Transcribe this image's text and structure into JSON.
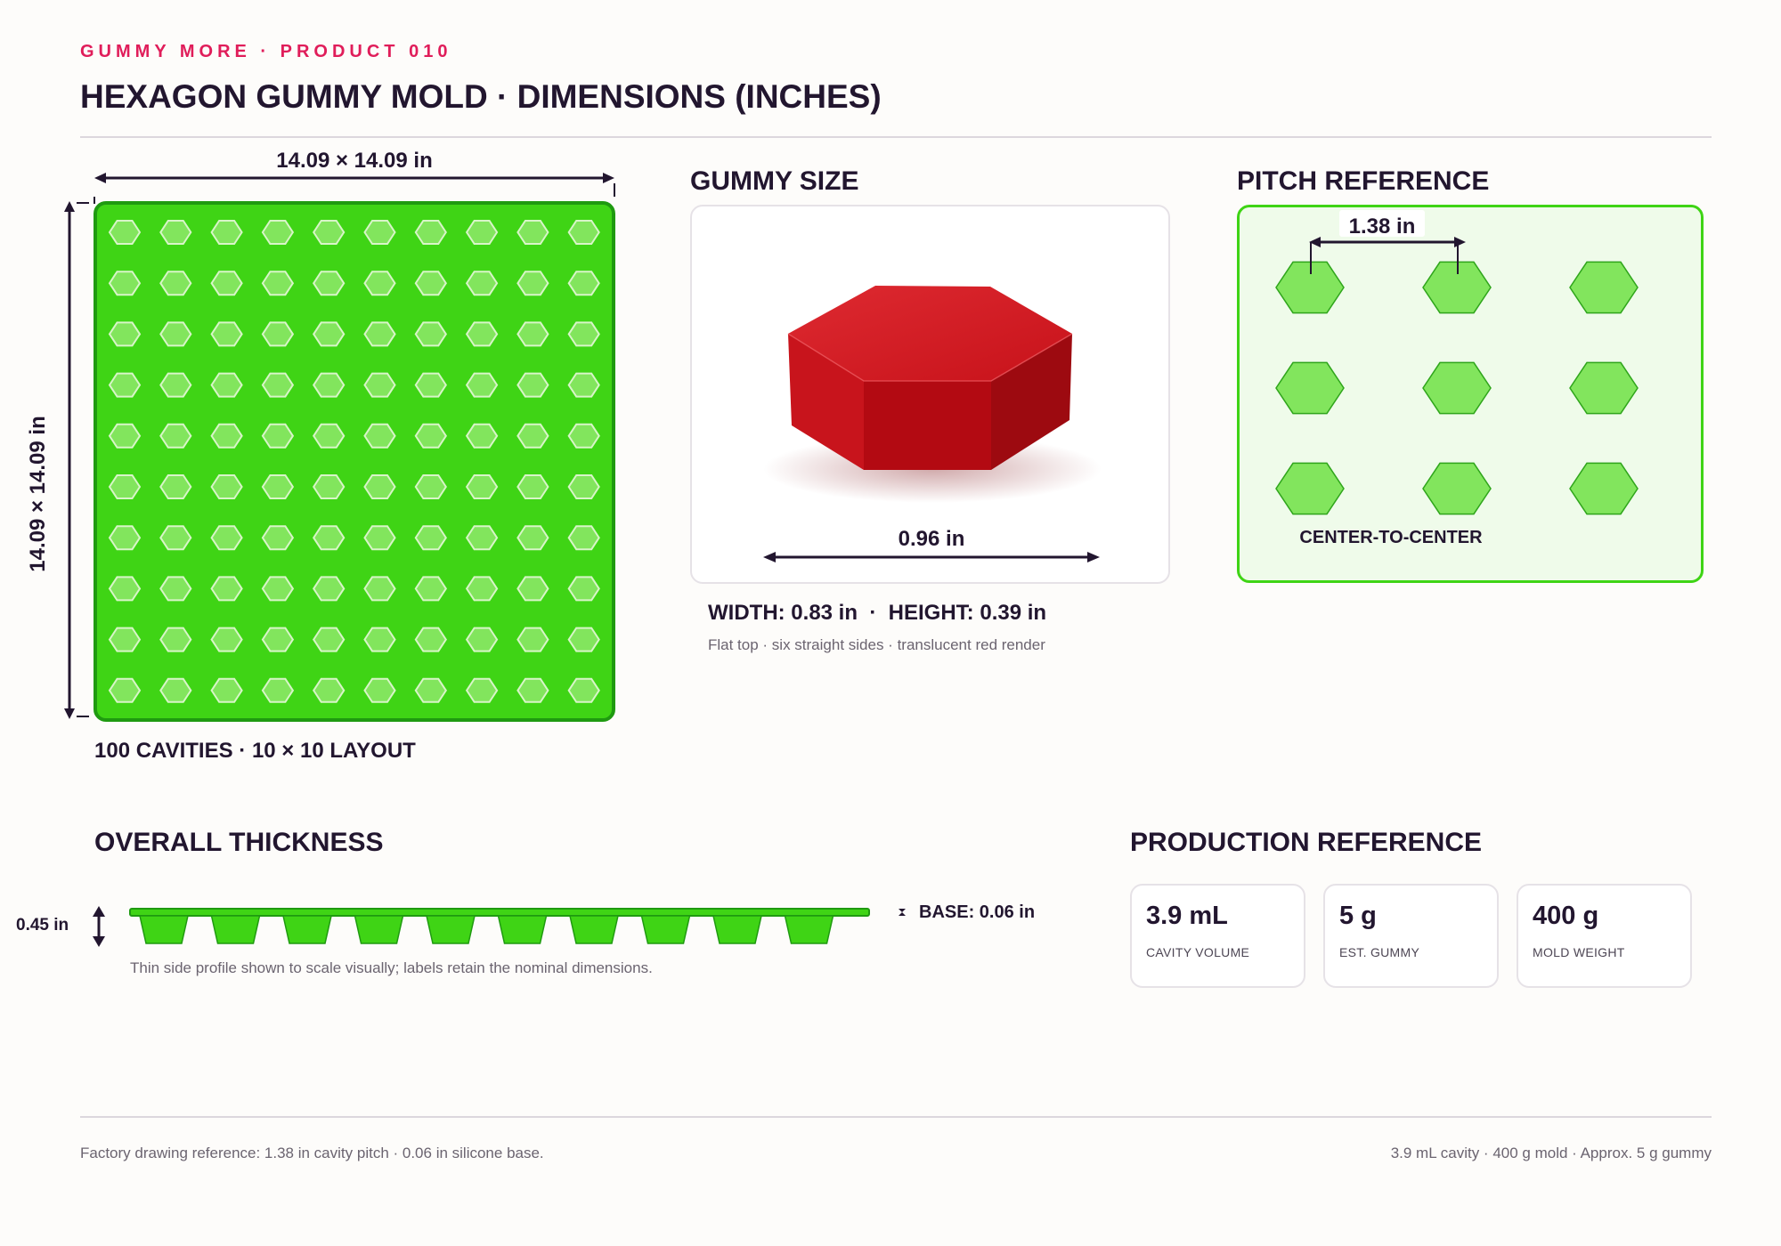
{
  "header": {
    "eyebrow": "GUMMY MORE · PRODUCT 010",
    "title": "HEXAGON GUMMY MOLD · DIMENSIONS (INCHES)"
  },
  "mold": {
    "width_label": "14.09 × 14.09 in",
    "height_label": "14.09 × 14.09 in",
    "rows": 10,
    "cols": 10,
    "caption": "100 CAVITIES · 10 × 10 LAYOUT",
    "colors": {
      "tray": "#3fd415",
      "tray_border": "#1f9a10",
      "cavity": "#82e55d",
      "cavity_stroke": "#d8f5c8"
    }
  },
  "gummy": {
    "section_title": "GUMMY SIZE",
    "diameter_label": "0.96 in",
    "dims": "WIDTH: 0.83 in  ·  HEIGHT: 0.39 in",
    "note": "Flat top · six straight sides · translucent red render",
    "colors": {
      "top": "#d41a22",
      "front": "#b30a12",
      "side_dark": "#9d0a10",
      "side_light": "#c8141c"
    }
  },
  "pitch": {
    "section_title": "PITCH REFERENCE",
    "pitch_label": "1.38 in",
    "caption": "CENTER-TO-CENTER",
    "rows": 3,
    "cols": 3,
    "colors": {
      "panel_bg": "#effbea",
      "panel_border": "#3fd415",
      "hex": "#82e55d",
      "hex_stroke": "#2fa51b"
    }
  },
  "thickness": {
    "section_title": "OVERALL THICKNESS",
    "total_label": "0.45 in",
    "base_label": "BASE: 0.06 in",
    "cavity_count": 10,
    "note": "Thin side profile shown to scale visually; labels retain the nominal dimensions."
  },
  "production": {
    "section_title": "PRODUCTION REFERENCE",
    "stats": [
      {
        "value": "3.9 mL",
        "label": "CAVITY VOLUME"
      },
      {
        "value": "5 g",
        "label": "EST. GUMMY"
      },
      {
        "value": "400 g",
        "label": "MOLD WEIGHT"
      }
    ]
  },
  "footer": {
    "left": "Factory drawing reference: 1.38 in cavity pitch · 0.06 in silicone base.",
    "right": "3.9 mL cavity · 400 g mold · Approx. 5 g gummy"
  }
}
